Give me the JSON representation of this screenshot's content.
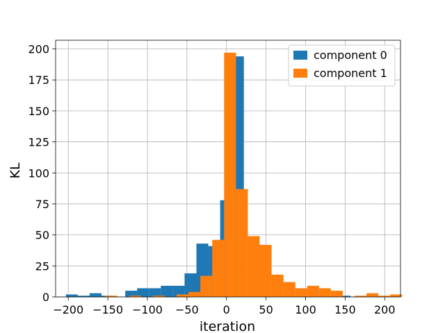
{
  "chart_data": {
    "type": "bar",
    "title": "",
    "xlabel": "iteration",
    "ylabel": "KL",
    "xlim": [
      -216,
      220
    ],
    "ylim": [
      0,
      207
    ],
    "grid": true,
    "legend_position": "top-right",
    "xticks": [
      -200,
      -150,
      -100,
      -50,
      0,
      50,
      100,
      150,
      200
    ],
    "yticks": [
      0,
      25,
      50,
      75,
      100,
      125,
      150,
      175,
      200
    ],
    "series": [
      {
        "name": "component 0",
        "color": "#1f77b4",
        "bins": [
          {
            "x0": -203,
            "x1": -188,
            "value": 2
          },
          {
            "x0": -188,
            "x1": -173,
            "value": 1
          },
          {
            "x0": -173,
            "x1": -158,
            "value": 3
          },
          {
            "x0": -158,
            "x1": -143,
            "value": 1
          },
          {
            "x0": -143,
            "x1": -128,
            "value": 0
          },
          {
            "x0": -128,
            "x1": -113,
            "value": 5
          },
          {
            "x0": -113,
            "x1": -98,
            "value": 7
          },
          {
            "x0": -98,
            "x1": -83,
            "value": 7
          },
          {
            "x0": -83,
            "x1": -68,
            "value": 9
          },
          {
            "x0": -68,
            "x1": -53,
            "value": 9
          },
          {
            "x0": -53,
            "x1": -38,
            "value": 19
          },
          {
            "x0": -38,
            "x1": -23,
            "value": 43
          },
          {
            "x0": -23,
            "x1": -8,
            "value": 41
          },
          {
            "x0": -8,
            "x1": 7,
            "value": 78
          },
          {
            "x0": 7,
            "x1": 22,
            "value": 194
          },
          {
            "x0": 22,
            "x1": 37,
            "value": 0
          },
          {
            "x0": 37,
            "x1": 52,
            "value": 0
          },
          {
            "x0": 52,
            "x1": 67,
            "value": 0
          },
          {
            "x0": 67,
            "x1": 82,
            "value": 0
          },
          {
            "x0": 82,
            "x1": 97,
            "value": 0
          },
          {
            "x0": 97,
            "x1": 112,
            "value": 0
          },
          {
            "x0": 112,
            "x1": 127,
            "value": 0
          },
          {
            "x0": 127,
            "x1": 142,
            "value": 1
          },
          {
            "x0": 142,
            "x1": 157,
            "value": 1
          }
        ]
      },
      {
        "name": "component 1",
        "color": "#ff7f0e",
        "bins": [
          {
            "x0": -153,
            "x1": -138,
            "value": 1
          },
          {
            "x0": -138,
            "x1": -123,
            "value": 0
          },
          {
            "x0": -123,
            "x1": -108,
            "value": 1
          },
          {
            "x0": -108,
            "x1": -93,
            "value": 0
          },
          {
            "x0": -93,
            "x1": -78,
            "value": 1
          },
          {
            "x0": -78,
            "x1": -63,
            "value": 0
          },
          {
            "x0": -63,
            "x1": -48,
            "value": 2
          },
          {
            "x0": -48,
            "x1": -33,
            "value": 4
          },
          {
            "x0": -33,
            "x1": -18,
            "value": 17
          },
          {
            "x0": -18,
            "x1": -3,
            "value": 46
          },
          {
            "x0": -3,
            "x1": 12,
            "value": 197
          },
          {
            "x0": 12,
            "x1": 27,
            "value": 87
          },
          {
            "x0": 27,
            "x1": 42,
            "value": 49
          },
          {
            "x0": 42,
            "x1": 57,
            "value": 42
          },
          {
            "x0": 57,
            "x1": 72,
            "value": 18
          },
          {
            "x0": 72,
            "x1": 87,
            "value": 12
          },
          {
            "x0": 87,
            "x1": 102,
            "value": 7
          },
          {
            "x0": 102,
            "x1": 117,
            "value": 9
          },
          {
            "x0": 117,
            "x1": 132,
            "value": 7
          },
          {
            "x0": 132,
            "x1": 147,
            "value": 5
          },
          {
            "x0": 147,
            "x1": 162,
            "value": 0
          },
          {
            "x0": 162,
            "x1": 177,
            "value": 1
          },
          {
            "x0": 177,
            "x1": 192,
            "value": 3
          },
          {
            "x0": 192,
            "x1": 207,
            "value": 1
          },
          {
            "x0": 207,
            "x1": 222,
            "value": 2
          }
        ]
      }
    ]
  }
}
